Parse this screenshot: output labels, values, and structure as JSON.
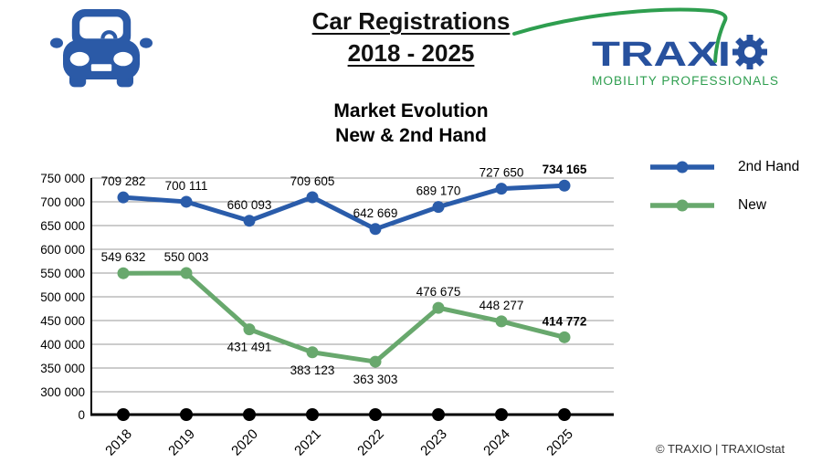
{
  "page": {
    "title_line1": "Car Registrations",
    "title_line2": "2018 - 2025",
    "footer": "© TRAXIO | TRAXIOstat"
  },
  "logo": {
    "brand_prefix": "TRAXI",
    "tagline": "MOBILITY PROFESSIONALS",
    "blue": "#27519E",
    "green": "#2E9E4F"
  },
  "icons": {
    "car_color": "#2B5AA7"
  },
  "chart_data": {
    "type": "line",
    "title_line1": "Market Evolution",
    "title_line2": "New & 2nd Hand",
    "categories": [
      "2018",
      "2019",
      "2020",
      "2021",
      "2022",
      "2023",
      "2024",
      "2025"
    ],
    "series": [
      {
        "name": "2nd Hand",
        "color": "#2A5CAA",
        "values": [
          709282,
          700111,
          660093,
          709605,
          642669,
          689170,
          727650,
          734165
        ],
        "labels": [
          "709 282",
          "700 111",
          "660 093",
          "709 605",
          "642 669",
          "689 170",
          "727 650",
          "734 165"
        ],
        "label_positions": [
          "above",
          "above",
          "above",
          "above",
          "above",
          "above",
          "above",
          "above"
        ],
        "last_label_bold": true
      },
      {
        "name": "New",
        "color": "#68A86D",
        "values": [
          549632,
          550003,
          431491,
          383123,
          363303,
          476675,
          448277,
          414772
        ],
        "labels": [
          "549 632",
          "550 003",
          "431 491",
          "383 123",
          "363 303",
          "476 675",
          "448 277",
          "414 772"
        ],
        "label_positions": [
          "above",
          "above",
          "below",
          "below",
          "below",
          "above",
          "above",
          "above"
        ],
        "last_label_bold": true
      }
    ],
    "baseline_markers": {
      "color": "#000000",
      "value": 0
    },
    "y_axis": {
      "tick_labels": [
        "750 000",
        "700 000",
        "650 000",
        "600 000",
        "550 000",
        "500 000",
        "450 000",
        "400 000",
        "350 000",
        "300 000",
        "0"
      ],
      "tick_values": [
        750000,
        700000,
        650000,
        600000,
        550000,
        500000,
        450000,
        400000,
        350000,
        300000,
        0
      ],
      "broken_axis": true
    },
    "grid": true,
    "legend_position": "right"
  }
}
